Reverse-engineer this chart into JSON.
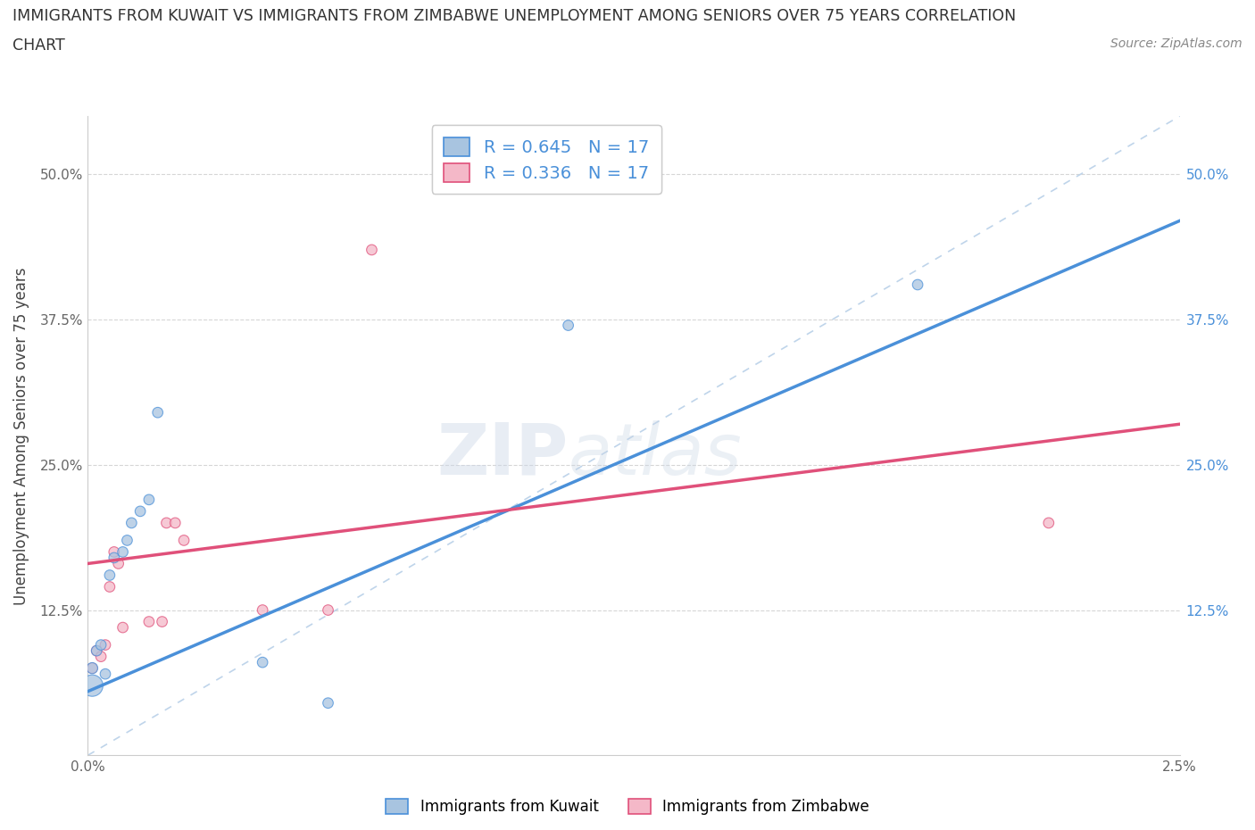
{
  "title_line1": "IMMIGRANTS FROM KUWAIT VS IMMIGRANTS FROM ZIMBABWE UNEMPLOYMENT AMONG SENIORS OVER 75 YEARS CORRELATION",
  "title_line2": "CHART",
  "source_text": "Source: ZipAtlas.com",
  "ylabel": "Unemployment Among Seniors over 75 years",
  "xlim": [
    0.0,
    0.025
  ],
  "ylim": [
    0.0,
    0.55
  ],
  "x_ticks": [
    0.0,
    0.005,
    0.01,
    0.015,
    0.02,
    0.025
  ],
  "x_tick_labels": [
    "0.0%",
    "",
    "",
    "",
    "",
    "2.5%"
  ],
  "y_ticks": [
    0.0,
    0.125,
    0.25,
    0.375,
    0.5
  ],
  "y_tick_labels": [
    "",
    "12.5%",
    "25.0%",
    "37.5%",
    "50.0%"
  ],
  "kuwait_x": [
    0.0001,
    0.0001,
    0.0002,
    0.0003,
    0.0004,
    0.0005,
    0.0006,
    0.0008,
    0.0009,
    0.001,
    0.0012,
    0.0014,
    0.0016,
    0.004,
    0.0055,
    0.011,
    0.019
  ],
  "kuwait_y": [
    0.06,
    0.075,
    0.09,
    0.095,
    0.07,
    0.155,
    0.17,
    0.175,
    0.185,
    0.2,
    0.21,
    0.22,
    0.295,
    0.08,
    0.045,
    0.37,
    0.405
  ],
  "kuwait_sizes": [
    300,
    80,
    70,
    70,
    70,
    70,
    70,
    70,
    70,
    70,
    70,
    70,
    70,
    70,
    70,
    70,
    70
  ],
  "zimbabwe_x": [
    0.0001,
    0.0002,
    0.0003,
    0.0004,
    0.0005,
    0.0006,
    0.0007,
    0.0008,
    0.0014,
    0.0017,
    0.0018,
    0.002,
    0.0022,
    0.004,
    0.0055,
    0.0065,
    0.022
  ],
  "zimbabwe_y": [
    0.075,
    0.09,
    0.085,
    0.095,
    0.145,
    0.175,
    0.165,
    0.11,
    0.115,
    0.115,
    0.2,
    0.2,
    0.185,
    0.125,
    0.125,
    0.435,
    0.2
  ],
  "zimbabwe_sizes": [
    70,
    70,
    70,
    70,
    70,
    70,
    70,
    70,
    70,
    70,
    70,
    70,
    70,
    70,
    70,
    70,
    70
  ],
  "kuwait_color": "#a8c4e0",
  "zimbabwe_color": "#f4b8c8",
  "kuwait_line_color": "#4a90d9",
  "zimbabwe_line_color": "#e0507a",
  "diagonal_color": "#b8d0e8",
  "kuwait_line_x0": 0.0,
  "kuwait_line_y0": 0.055,
  "kuwait_line_x1": 0.025,
  "kuwait_line_y1": 0.46,
  "zimbabwe_line_x0": 0.0,
  "zimbabwe_line_y0": 0.165,
  "zimbabwe_line_x1": 0.025,
  "zimbabwe_line_y1": 0.285,
  "R_kuwait": "0.645",
  "N_kuwait": "17",
  "R_zimbabwe": "0.336",
  "N_zimbabwe": "17",
  "legend_kuwait": "Immigrants from Kuwait",
  "legend_zimbabwe": "Immigrants from Zimbabwe",
  "watermark_zip": "ZIP",
  "watermark_atlas": "atlas",
  "background_color": "#ffffff",
  "grid_color": "#cccccc"
}
